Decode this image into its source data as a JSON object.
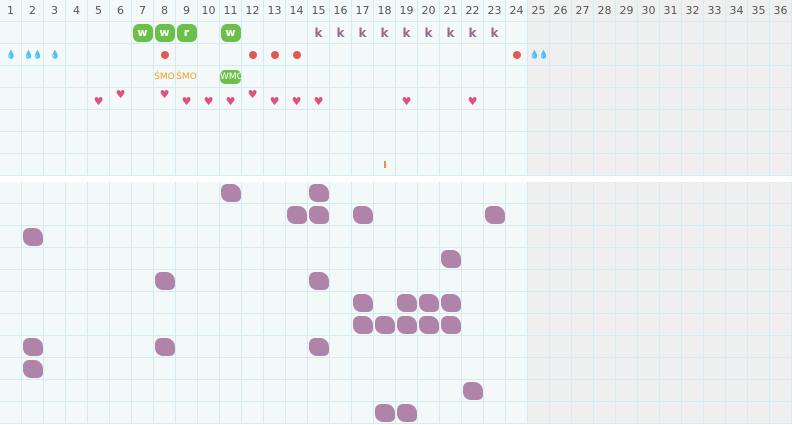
{
  "days": [
    "1",
    "2",
    "3",
    "4",
    "5",
    "6",
    "7",
    "8",
    "9",
    "10",
    "11",
    "12",
    "13",
    "14",
    "15",
    "16",
    "17",
    "18",
    "19",
    "20",
    "21",
    "22",
    "23",
    "24",
    "25",
    "26",
    "27",
    "28",
    "29",
    "30",
    "31",
    "32",
    "33",
    "34",
    "35",
    "36"
  ],
  "today_col": 25,
  "colors": {
    "green": "#6cc04a",
    "purple": "#9a6a8e",
    "red": "#e05a55",
    "pink": "#e0507a",
    "orange": "#f0a020",
    "blob": "#b084a8"
  },
  "top_rows": [
    {
      "w": {
        "7": "w",
        "8": "w",
        "9": "r",
        "11": "w"
      },
      "k": {
        "15": "k",
        "16": "k",
        "17": "k",
        "18": "k",
        "19": "k",
        "20": "k",
        "21": "k",
        "22": "k",
        "23": "k"
      }
    },
    {
      "drop": {
        "1": "💧",
        "2": "💧💧",
        "3": "💧",
        "25": "💧💧"
      },
      "dot": [
        "8",
        "12",
        "13",
        "14",
        "24"
      ]
    },
    {
      "smo": {
        "8": "ŚMO",
        "9": "ŚMO"
      },
      "wmo": {
        "11": "WMO"
      }
    },
    {
      "heart_up": [
        "6",
        "8",
        "12"
      ],
      "heart_down": [
        "5",
        "9",
        "10",
        "11",
        "13",
        "14",
        "15",
        "19",
        "22"
      ]
    },
    {},
    {},
    {
      "tick": [
        "18"
      ]
    }
  ],
  "bottom_rows": [
    [
      "11",
      "15"
    ],
    [
      "14",
      "15",
      "17",
      "23"
    ],
    [
      "2"
    ],
    [
      "21"
    ],
    [
      "8",
      "15"
    ],
    [
      "17",
      "19",
      "20",
      "21"
    ],
    [
      "17",
      "18",
      "19",
      "20",
      "21"
    ],
    [
      "2",
      "8",
      "15"
    ],
    [
      "2"
    ],
    [
      "22"
    ],
    [
      "18",
      "19"
    ]
  ]
}
